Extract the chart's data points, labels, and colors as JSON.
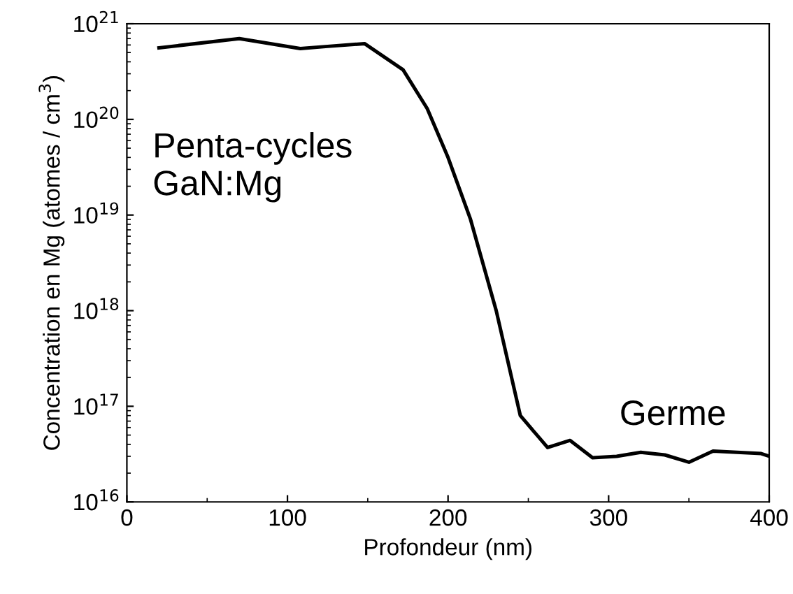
{
  "chart_data": {
    "type": "line",
    "xlabel": "Profondeur (nm)",
    "ylabel": "Concentration en Mg (atomes / cm$^{3}$)",
    "series": [
      {
        "color": "#000000",
        "x": [
          20,
          70,
          108,
          125,
          148,
          172,
          187,
          200,
          214,
          230,
          245,
          262,
          276,
          290,
          305,
          320,
          335,
          350,
          365,
          380,
          395,
          400
        ],
        "values": [
          5.6e+20,
          7e+20,
          5.5e+20,
          5.8e+20,
          6.2e+20,
          3.3e+20,
          1.3e+20,
          4e+19,
          9e+18,
          1e+18,
          8e+16,
          3.7e+16,
          4.4e+16,
          2.9e+16,
          3e+16,
          3.3e+16,
          3.1e+16,
          2.6e+16,
          3.4e+16,
          3.3e+16,
          3.2e+16,
          3e+16
        ]
      }
    ],
    "annotations": [
      "Penta-cycles\nGaN:Mg",
      "Germe"
    ],
    "log": "y",
    "xlim": [
      0,
      400
    ],
    "xticks": [
      0,
      100,
      200,
      300,
      400
    ],
    "ylim": [
      1e+16,
      1e+21
    ],
    "yticks": [
      {
        "value": 1e+16,
        "label": "10$^{16}$"
      },
      {
        "value": 1e+17,
        "label": "10$^{17}$"
      },
      {
        "value": 1e+18,
        "label": "10$^{18}$"
      },
      {
        "value": 1e+19,
        "label": "10$^{19}$"
      },
      {
        "value": 1e+20,
        "label": "10$^{20}$"
      },
      {
        "value": 1e+21,
        "label": "10$^{21}$"
      }
    ],
    "grid": false,
    "legend": false,
    "line_style": "solid",
    "marker": "none"
  }
}
